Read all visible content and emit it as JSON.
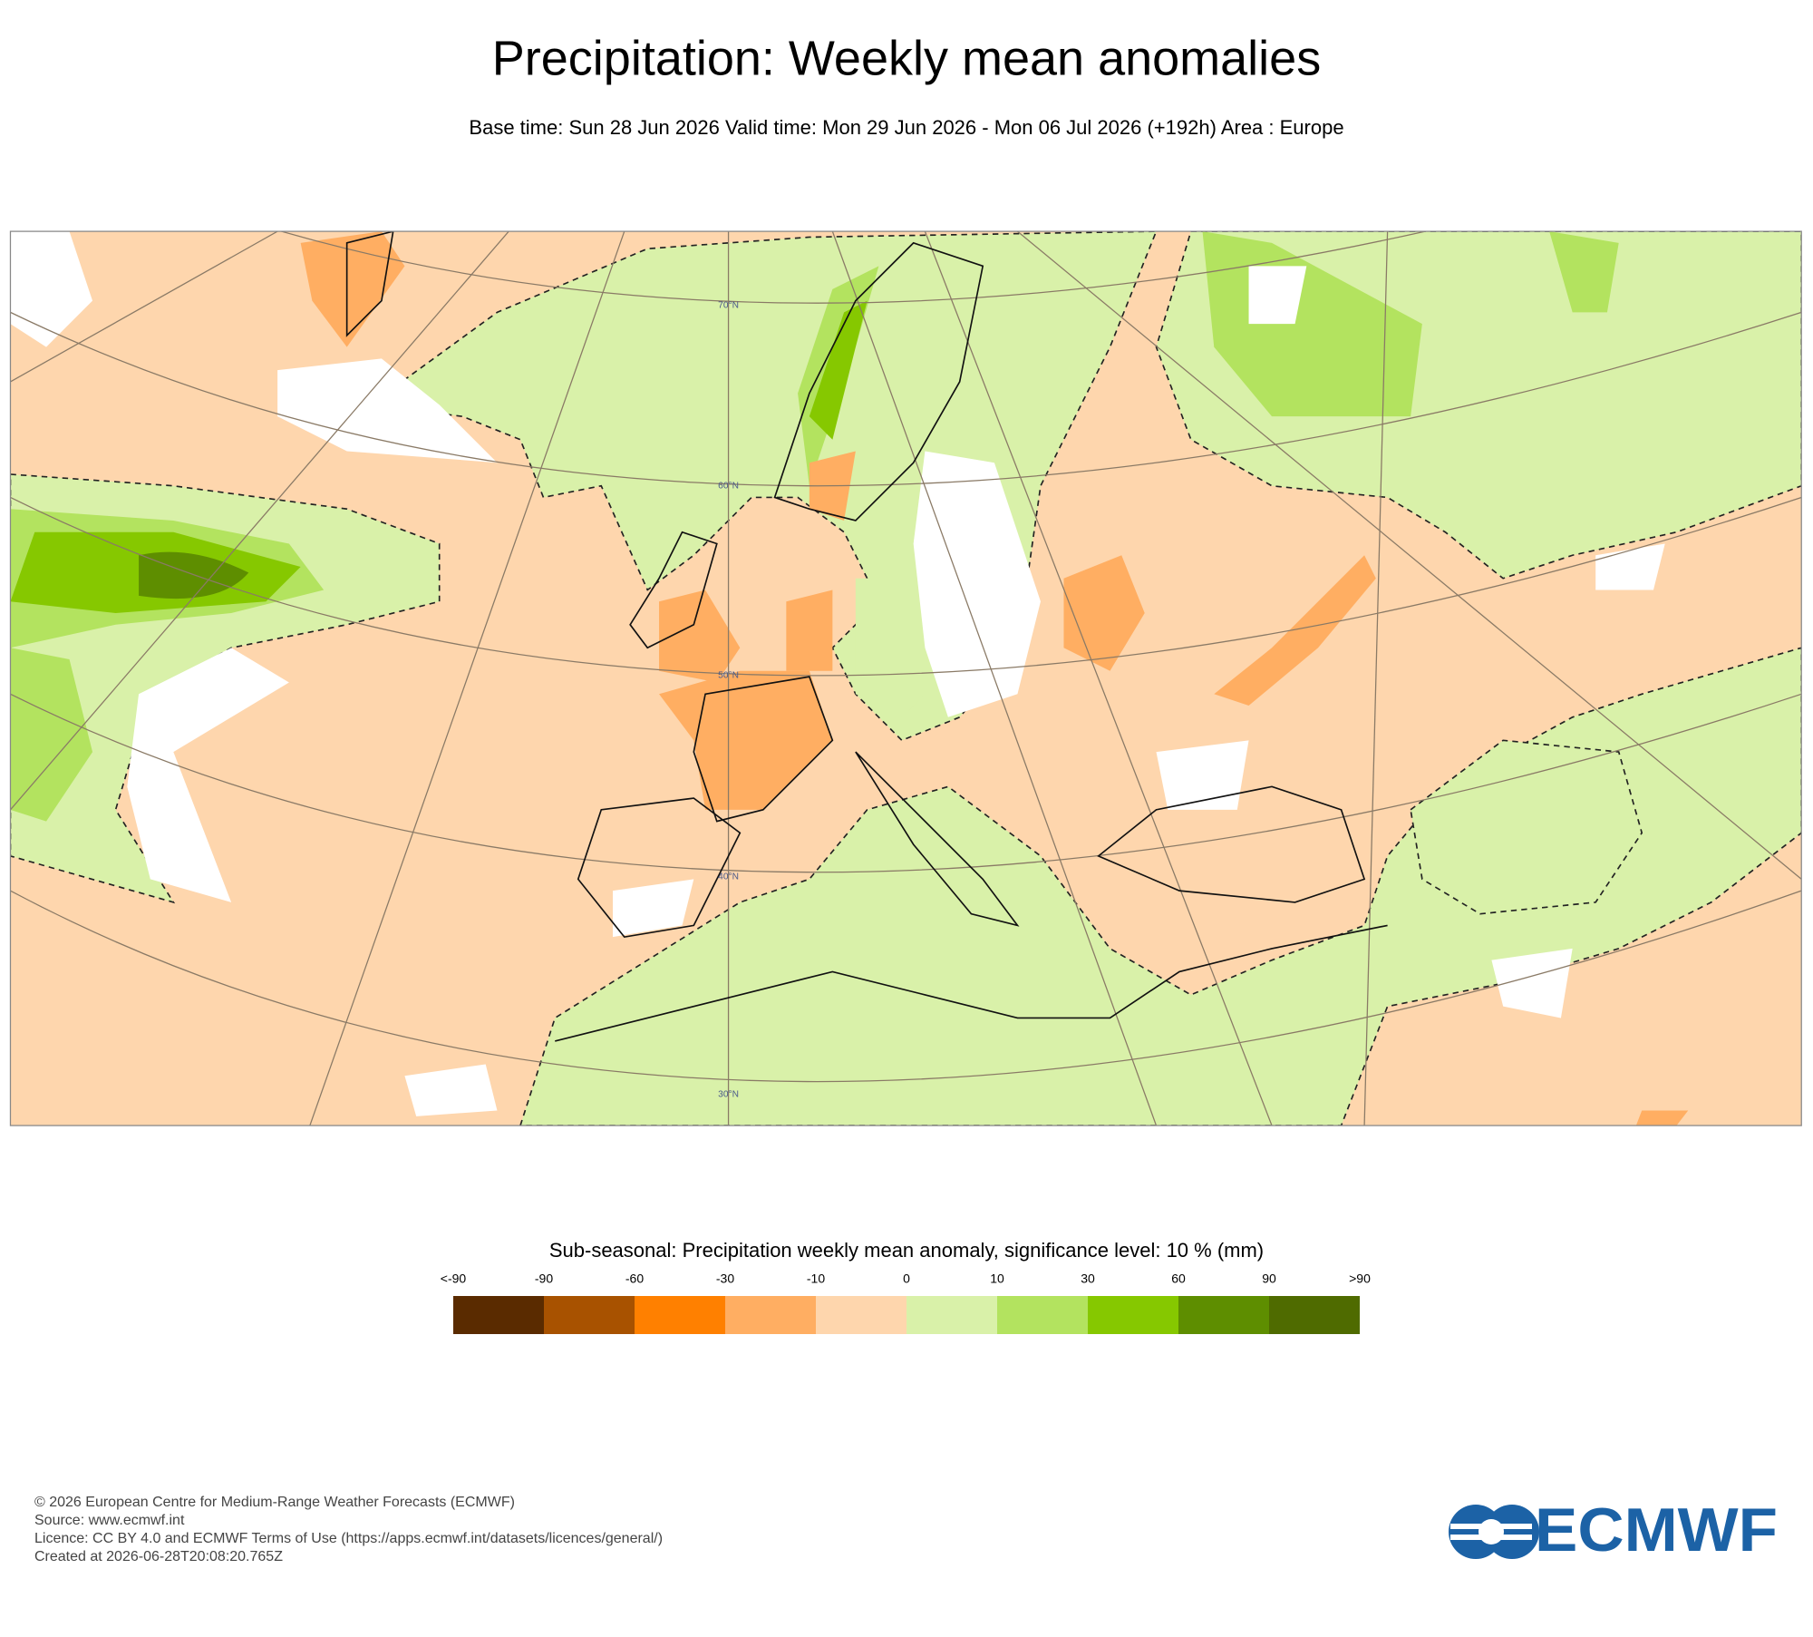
{
  "title": "Precipitation: Weekly mean anomalies",
  "subtitle": "Base time: Sun 28 Jun 2026 Valid time: Mon 29 Jun 2026 - Mon 06 Jul 2026 (+192h) Area : Europe",
  "map": {
    "latitude_labels": [
      "70°N",
      "60°N",
      "50°N",
      "40°N",
      "30°N"
    ]
  },
  "legend": {
    "title": "Sub-seasonal: Precipitation weekly mean anomaly, significance level: 10 % (mm)",
    "labels": [
      "<-90",
      "-90",
      "-60",
      "-30",
      "-10",
      "0",
      "10",
      "30",
      "60",
      "90",
      ">90"
    ],
    "colors": [
      "#5a2b00",
      "#a85200",
      "#ff8000",
      "#ffae62",
      "#fed6ad",
      "#d9f1a9",
      "#b3e35f",
      "#86c800",
      "#5e8e00",
      "#4f6b00"
    ]
  },
  "footer": {
    "lines": [
      "© 2026 European Centre for Medium-Range Weather Forecasts (ECMWF)",
      "Source: www.ecmwf.int",
      "Licence: CC BY 4.0 and ECMWF Terms of Use (https://apps.ecmwf.int/datasets/licences/general/)",
      "Created at 2026-06-28T20:08:20.765Z"
    ]
  },
  "logo": "ECMWF"
}
